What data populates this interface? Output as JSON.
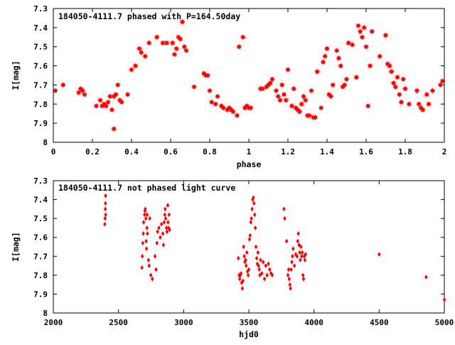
{
  "chart_data": [
    {
      "type": "scatter",
      "title": "184050-4111.7 phased with P=164.50day",
      "xlabel": "phase",
      "ylabel": "I[mag]",
      "xlim": [
        0,
        2
      ],
      "ylim": [
        7.3,
        8.0
      ],
      "y_inverted": true,
      "xticks": [
        0,
        0.2,
        0.4,
        0.6,
        0.8,
        1,
        1.2,
        1.4,
        1.6,
        1.8,
        2
      ],
      "xtick_labels": [
        "0",
        "0.2",
        "0.4",
        "0.6",
        "0.8",
        "1",
        "1.2",
        "1.4",
        "1.6",
        "1.8",
        "2"
      ],
      "yticks": [
        7.3,
        7.4,
        7.5,
        7.6,
        7.7,
        7.8,
        7.9,
        8.0
      ],
      "ytick_labels": [
        "7.3",
        "7.4",
        "7.5",
        "7.6",
        "7.7",
        "7.8",
        "7.9",
        "8"
      ],
      "grid": false,
      "legend": "none",
      "marker_color": "#ff0000",
      "series": [
        {
          "x": [
            0.01,
            0.05,
            0.13,
            0.14,
            0.15,
            0.16,
            0.22,
            0.24,
            0.25,
            0.26,
            0.27,
            0.28,
            0.29,
            0.3,
            0.31,
            0.31,
            0.32,
            0.33,
            0.34,
            0.35,
            0.38,
            0.4,
            0.42,
            0.44,
            0.45,
            0.47,
            0.49,
            0.53,
            0.56,
            0.58,
            0.61,
            0.62,
            0.63,
            0.64,
            0.65,
            0.66,
            0.67,
            0.68,
            0.72,
            0.77,
            0.78,
            0.79,
            0.8,
            0.81,
            0.83,
            0.84,
            0.86,
            0.87,
            0.89,
            0.9,
            0.91,
            0.92,
            0.94,
            0.95,
            0.97,
            0.98,
            0.99,
            1.0,
            1.01,
            1.06,
            1.07,
            1.09,
            1.1,
            1.11,
            1.12,
            1.14,
            1.15,
            1.16,
            1.17,
            1.18,
            1.19,
            1.2,
            1.22,
            1.23,
            1.24,
            1.25,
            1.26,
            1.27,
            1.28,
            1.29,
            1.3,
            1.31,
            1.32,
            1.33,
            1.34,
            1.35,
            1.37,
            1.38,
            1.39,
            1.4,
            1.41,
            1.42,
            1.43,
            1.45,
            1.46,
            1.47,
            1.48,
            1.49,
            1.5,
            1.51,
            1.53,
            1.55,
            1.56,
            1.57,
            1.58,
            1.59,
            1.6,
            1.61,
            1.62,
            1.63,
            1.67,
            1.7,
            1.71,
            1.72,
            1.73,
            1.74,
            1.75,
            1.76,
            1.77,
            1.78,
            1.79,
            1.8,
            1.82,
            1.86,
            1.87,
            1.88,
            1.89,
            1.91,
            1.92,
            1.94,
            1.98,
            1.99
          ],
          "y": [
            7.73,
            7.7,
            7.74,
            7.72,
            7.73,
            7.75,
            7.81,
            7.78,
            7.81,
            7.8,
            7.81,
            7.79,
            7.76,
            7.83,
            7.93,
            7.76,
            7.75,
            7.7,
            7.78,
            7.79,
            7.75,
            7.62,
            7.6,
            7.51,
            7.53,
            7.55,
            7.48,
            7.45,
            7.48,
            7.48,
            7.48,
            7.54,
            7.51,
            7.45,
            7.46,
            7.37,
            7.5,
            7.52,
            7.71,
            7.64,
            7.65,
            7.65,
            7.73,
            7.79,
            7.8,
            7.76,
            7.81,
            7.82,
            7.83,
            7.82,
            7.83,
            7.84,
            7.86,
            7.5,
            7.45,
            7.82,
            7.81,
            7.82,
            7.82,
            7.72,
            7.72,
            7.71,
            7.7,
            7.69,
            7.67,
            7.73,
            7.76,
            7.78,
            7.7,
            7.75,
            7.78,
            7.62,
            7.81,
            7.72,
            7.82,
            7.83,
            7.84,
            7.8,
            7.76,
            7.78,
            7.86,
            7.86,
            7.73,
            7.87,
            7.87,
            7.63,
            7.82,
            7.58,
            7.55,
            7.51,
            7.75,
            7.76,
            7.7,
            7.52,
            7.56,
            7.6,
            7.71,
            7.7,
            7.67,
            7.48,
            7.49,
            7.66,
            7.39,
            7.42,
            7.45,
            7.4,
            7.5,
            7.81,
            7.6,
            7.42,
            7.55,
            7.44,
            7.59,
            7.6,
            7.63,
            7.69,
            7.71,
            7.66,
            7.75,
            7.79,
            7.67,
            7.72,
            7.8,
            7.73,
            7.8,
            7.82,
            7.83,
            7.75,
            7.8,
            7.73,
            7.7,
            7.68
          ]
        }
      ]
    },
    {
      "type": "scatter",
      "title": "184050-4111.7 not phased light curve",
      "xlabel": "hjd0",
      "ylabel": "I[mag]",
      "xlim": [
        2000,
        5000
      ],
      "ylim": [
        7.3,
        8.0
      ],
      "y_inverted": true,
      "xticks": [
        2000,
        2500,
        3000,
        3500,
        4000,
        4500,
        5000
      ],
      "xtick_labels": [
        "2000",
        "2500",
        "3000",
        "3500",
        "4000",
        "4500",
        "5000"
      ],
      "yticks": [
        7.3,
        7.4,
        7.5,
        7.6,
        7.7,
        7.8,
        7.9,
        8.0
      ],
      "ytick_labels": [
        "7.3",
        "7.4",
        "7.5",
        "7.6",
        "7.7",
        "7.8",
        "7.9",
        "8"
      ],
      "grid": false,
      "legend": "none",
      "marker_color": "#ff0000",
      "series": [
        {
          "x": [
            2395,
            2397,
            2399,
            2400,
            2401,
            2402,
            2680,
            2683,
            2686,
            2690,
            2693,
            2700,
            2703,
            2706,
            2710,
            2712,
            2715,
            2718,
            2720,
            2722,
            2730,
            2735,
            2740,
            2748,
            2760,
            2780,
            2788,
            2795,
            2800,
            2810,
            2820,
            2830,
            2840,
            2845,
            2850,
            2855,
            2858,
            2862,
            2868,
            2872,
            2878,
            2880,
            2885,
            2888,
            2892,
            3420,
            3425,
            3430,
            3435,
            3440,
            3445,
            3450,
            3455,
            3460,
            3465,
            3470,
            3475,
            3480,
            3485,
            3490,
            3495,
            3500,
            3505,
            3510,
            3515,
            3520,
            3525,
            3530,
            3535,
            3540,
            3545,
            3550,
            3555,
            3560,
            3565,
            3570,
            3575,
            3580,
            3585,
            3590,
            3600,
            3610,
            3620,
            3630,
            3640,
            3650,
            3660,
            3670,
            3680,
            3770,
            3775,
            3790,
            3800,
            3805,
            3810,
            3815,
            3820,
            3825,
            3830,
            3835,
            3840,
            3850,
            3860,
            3870,
            3875,
            3880,
            3885,
            3890,
            3895,
            3900,
            3905,
            3910,
            3915,
            3920,
            3925,
            3930,
            3935,
            4500,
            4860,
            5000
          ],
          "y": [
            7.53,
            7.5,
            7.45,
            7.42,
            7.38,
            7.48,
            7.76,
            7.7,
            7.63,
            7.58,
            7.52,
            7.48,
            7.46,
            7.45,
            7.5,
            7.62,
            7.66,
            7.55,
            7.48,
            7.58,
            7.72,
            7.75,
            7.5,
            7.8,
            7.82,
            7.7,
            7.77,
            7.63,
            7.57,
            7.55,
            7.6,
            7.53,
            7.58,
            7.64,
            7.52,
            7.48,
            7.45,
            7.5,
            7.55,
            7.57,
            7.43,
            7.52,
            7.55,
            7.48,
            7.56,
            7.71,
            7.8,
            7.82,
            7.8,
            7.79,
            7.84,
            7.87,
            7.83,
            7.65,
            7.7,
            7.73,
            7.72,
            7.75,
            7.68,
            7.78,
            7.8,
            7.77,
            7.61,
            7.59,
            7.52,
            7.5,
            7.45,
            7.4,
            7.39,
            7.42,
            7.48,
            7.55,
            7.65,
            7.71,
            7.74,
            7.68,
            7.75,
            7.77,
            7.8,
            7.72,
            7.79,
            7.73,
            7.82,
            7.75,
            7.8,
            7.74,
            7.77,
            7.79,
            7.8,
            7.45,
            7.5,
            7.62,
            7.8,
            7.77,
            7.82,
            7.85,
            7.87,
            7.77,
            7.73,
            7.7,
            7.66,
            7.75,
            7.69,
            7.7,
            7.62,
            7.58,
            7.64,
            7.68,
            7.72,
            7.65,
            7.7,
            7.68,
            7.8,
            7.82,
            7.7,
            7.72,
            7.69,
            7.69,
            7.81,
            7.93
          ]
        }
      ]
    }
  ]
}
